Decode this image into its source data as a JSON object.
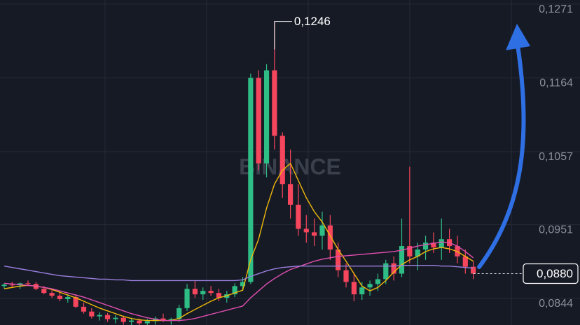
{
  "chart_data": {
    "type": "candlestick",
    "watermark": "BINANCE",
    "up_color": "#2ebd85",
    "down_color": "#f6465d",
    "ylim": [
      0.08055,
      0.1277
    ],
    "yticks": [
      {
        "value": 0.1271,
        "label": "0,1271"
      },
      {
        "value": 0.1164,
        "label": "0,1164"
      },
      {
        "value": 0.1057,
        "label": "0,1057"
      },
      {
        "value": 0.0951,
        "label": "0,0951"
      },
      {
        "value": 0.0844,
        "label": "0,0844"
      }
    ],
    "grid": true,
    "open": [
      0.0862,
      0.0864,
      0.0863,
      0.0866,
      0.0865,
      0.0858,
      0.0852,
      0.0848,
      0.0843,
      0.0846,
      0.0832,
      0.0825,
      0.0818,
      0.082,
      0.0814,
      0.0816,
      0.081,
      0.0812,
      0.0808,
      0.0811,
      0.0815,
      0.0812,
      0.0814,
      0.083,
      0.0858,
      0.085,
      0.0855,
      0.0852,
      0.0845,
      0.085,
      0.0862,
      0.0868,
      0.1164,
      0.104,
      0.1175,
      0.108,
      0.101,
      0.098,
      0.0945,
      0.094,
      0.0935,
      0.095,
      0.0915,
      0.0885,
      0.0868,
      0.085,
      0.086,
      0.0865,
      0.0872,
      0.0895,
      0.088,
      0.092,
      0.0905,
      0.0915,
      0.0925,
      0.0918,
      0.093,
      0.092,
      0.0905,
      0.089
    ],
    "high": [
      0.0866,
      0.0868,
      0.0867,
      0.087,
      0.0868,
      0.0862,
      0.0856,
      0.0852,
      0.085,
      0.085,
      0.0838,
      0.083,
      0.0824,
      0.0823,
      0.082,
      0.0819,
      0.0816,
      0.0815,
      0.0814,
      0.0818,
      0.0822,
      0.0816,
      0.0835,
      0.0865,
      0.087,
      0.086,
      0.0862,
      0.0858,
      0.0855,
      0.0866,
      0.0875,
      0.117,
      0.1175,
      0.1184,
      0.1246,
      0.1085,
      0.106,
      0.101,
      0.0965,
      0.096,
      0.097,
      0.0965,
      0.0925,
      0.0895,
      0.088,
      0.0868,
      0.087,
      0.088,
      0.09,
      0.0905,
      0.096,
      0.1035,
      0.0925,
      0.0935,
      0.094,
      0.096,
      0.0945,
      0.0935,
      0.0915,
      0.0898
    ],
    "low": [
      0.0858,
      0.086,
      0.0858,
      0.0862,
      0.0856,
      0.085,
      0.0845,
      0.084,
      0.0838,
      0.083,
      0.0822,
      0.0815,
      0.0812,
      0.081,
      0.0808,
      0.0806,
      0.0804,
      0.0805,
      0.0803,
      0.0806,
      0.081,
      0.0806,
      0.081,
      0.0826,
      0.0845,
      0.0842,
      0.0848,
      0.084,
      0.0838,
      0.0846,
      0.0855,
      0.0865,
      0.103,
      0.102,
      0.106,
      0.099,
      0.096,
      0.0935,
      0.0925,
      0.092,
      0.0915,
      0.09,
      0.0875,
      0.086,
      0.084,
      0.0842,
      0.0848,
      0.0855,
      0.0865,
      0.087,
      0.0875,
      0.0895,
      0.0885,
      0.09,
      0.091,
      0.09,
      0.091,
      0.0895,
      0.088,
      0.0872
    ],
    "close": [
      0.0864,
      0.0863,
      0.0866,
      0.0865,
      0.0858,
      0.0852,
      0.0848,
      0.0843,
      0.0846,
      0.0832,
      0.0825,
      0.0818,
      0.082,
      0.0814,
      0.0816,
      0.081,
      0.0812,
      0.0808,
      0.0811,
      0.0815,
      0.0812,
      0.0814,
      0.083,
      0.0858,
      0.085,
      0.0855,
      0.0852,
      0.0845,
      0.085,
      0.0862,
      0.0868,
      0.1164,
      0.104,
      0.1175,
      0.108,
      0.101,
      0.098,
      0.0945,
      0.094,
      0.0935,
      0.095,
      0.0915,
      0.0885,
      0.0868,
      0.085,
      0.086,
      0.0865,
      0.0872,
      0.0895,
      0.088,
      0.092,
      0.0905,
      0.0915,
      0.0925,
      0.0918,
      0.093,
      0.092,
      0.0905,
      0.089,
      0.088
    ],
    "lines": [
      {
        "color": "#f0b90b",
        "values": [
          0.0858,
          0.086,
          0.0862,
          0.0863,
          0.0862,
          0.086,
          0.0857,
          0.0853,
          0.0849,
          0.0845,
          0.084,
          0.0835,
          0.083,
          0.0826,
          0.0822,
          0.0818,
          0.0815,
          0.0813,
          0.0812,
          0.0812,
          0.0812,
          0.0812,
          0.0815,
          0.0822,
          0.0828,
          0.0834,
          0.084,
          0.0845,
          0.0848,
          0.0852,
          0.0856,
          0.09,
          0.093,
          0.0975,
          0.101,
          0.103,
          0.104,
          0.1015,
          0.099,
          0.097,
          0.0955,
          0.0935,
          0.0915,
          0.0898,
          0.088,
          0.0862,
          0.0855,
          0.086,
          0.087,
          0.0882,
          0.0893,
          0.09,
          0.0905,
          0.0912,
          0.0916,
          0.0918,
          0.0916,
          0.0912,
          0.0905,
          0.0898
        ]
      },
      {
        "color": "#e04fb0",
        "values": [
          0.0866,
          0.0865,
          0.0864,
          0.0863,
          0.0862,
          0.086,
          0.0858,
          0.0855,
          0.0852,
          0.0849,
          0.0846,
          0.0842,
          0.0838,
          0.0834,
          0.083,
          0.0826,
          0.0822,
          0.0819,
          0.0816,
          0.0814,
          0.0812,
          0.0812,
          0.0812,
          0.0813,
          0.0815,
          0.0818,
          0.0821,
          0.0824,
          0.0827,
          0.083,
          0.0833,
          0.0845,
          0.0855,
          0.0865,
          0.0873,
          0.088,
          0.0886,
          0.089,
          0.0894,
          0.0898,
          0.0901,
          0.0903,
          0.0905,
          0.0906,
          0.0907,
          0.0908,
          0.0909,
          0.091,
          0.0911,
          0.0912,
          0.0914,
          0.0917,
          0.092,
          0.0922,
          0.0924,
          0.0926,
          0.0925,
          0.092,
          0.0912,
          0.0903
        ]
      },
      {
        "color": "#9b7fe0",
        "values": [
          0.0891,
          0.0889,
          0.0887,
          0.0885,
          0.0883,
          0.0881,
          0.0879,
          0.0877,
          0.0876,
          0.0875,
          0.0874,
          0.0873,
          0.0872,
          0.0872,
          0.0871,
          0.0871,
          0.087,
          0.087,
          0.087,
          0.087,
          0.087,
          0.087,
          0.087,
          0.087,
          0.087,
          0.087,
          0.087,
          0.087,
          0.087,
          0.087,
          0.0871,
          0.0876,
          0.088,
          0.0884,
          0.0887,
          0.0889,
          0.089,
          0.0891,
          0.0891,
          0.0891,
          0.0891,
          0.0891,
          0.0891,
          0.0891,
          0.0891,
          0.0891,
          0.0891,
          0.0891,
          0.0891,
          0.0891,
          0.0892,
          0.0892,
          0.0892,
          0.0892,
          0.0892,
          0.0891,
          0.0891,
          0.089,
          0.0889,
          0.0888
        ]
      }
    ],
    "last_price": {
      "value": 0.088,
      "label": "0,0880"
    },
    "high_annotation": {
      "value": 0.1246,
      "label": "0,1246"
    }
  }
}
